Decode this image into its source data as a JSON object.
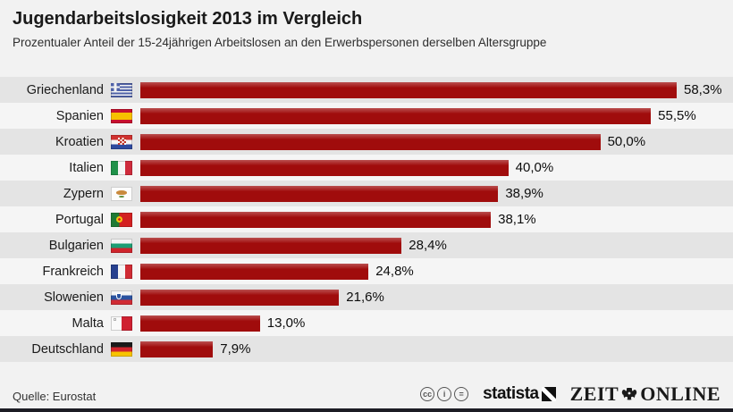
{
  "header": {
    "title": "Jugendarbeitslosigkeit 2013 im Vergleich",
    "subtitle": "Prozentualer Anteil der 15-24jährigen Arbeitslosen an den Erwerbspersonen derselben Altersgruppe"
  },
  "colors": {
    "bar": "#a00c0c",
    "row_odd": "#e4e4e4",
    "row_even": "#f5f5f5",
    "page_bg": "#f2f2f2",
    "bottom_strip": "#1c1c24"
  },
  "chart_data": {
    "type": "bar",
    "orientation": "horizontal",
    "title": "Jugendarbeitslosigkeit 2013 im Vergleich",
    "subtitle": "Prozentualer Anteil der 15-24jährigen Arbeitslosen an den Erwerbspersonen derselben Altersgruppe",
    "xlabel": "",
    "ylabel": "",
    "xlim": [
      0,
      60
    ],
    "grid": false,
    "legend": false,
    "source": "Eurostat",
    "categories": [
      "Griechenland",
      "Spanien",
      "Kroatien",
      "Italien",
      "Zypern",
      "Portugal",
      "Bulgarien",
      "Frankreich",
      "Slowenien",
      "Malta",
      "Deutschland"
    ],
    "values": [
      58.3,
      55.5,
      50.0,
      40.0,
      38.9,
      38.1,
      28.4,
      24.8,
      21.6,
      13.0,
      7.9
    ],
    "rows": [
      {
        "country": "Griechenland",
        "value": 58.3,
        "value_label": "58,3%",
        "flag_id": "greece",
        "flag": {
          "kind": "greece",
          "blue": "#4f61a8",
          "white": "#f2f2f2"
        }
      },
      {
        "country": "Spanien",
        "value": 55.5,
        "value_label": "55,5%",
        "flag_id": "spain",
        "flag": {
          "kind": "h",
          "stripes": [
            [
              "#c8102e",
              25
            ],
            [
              "#f7c000",
              50
            ],
            [
              "#c8102e",
              25
            ]
          ]
        }
      },
      {
        "country": "Kroatien",
        "value": 50.0,
        "value_label": "50,0%",
        "flag_id": "croatia",
        "flag": {
          "kind": "croatia",
          "stripes": [
            [
              "#d0312f",
              33.4
            ],
            [
              "#f5f5f5",
              33.3
            ],
            [
              "#2e4a9e",
              33.3
            ]
          ],
          "checker": [
            "#c0392b",
            "#ffffff"
          ]
        }
      },
      {
        "country": "Italien",
        "value": 40.0,
        "value_label": "40,0%",
        "flag_id": "italy",
        "flag": {
          "kind": "v",
          "stripes": [
            [
              "#1f9149",
              33.4
            ],
            [
              "#f5f5f5",
              33.3
            ],
            [
              "#cf2b3c",
              33.3
            ]
          ]
        }
      },
      {
        "country": "Zypern",
        "value": 38.9,
        "value_label": "38,9%",
        "flag_id": "cyprus",
        "flag": {
          "kind": "cyprus",
          "bg": "#fdfdfd",
          "island": "#c98a3d",
          "sprigs": "#5e8c3a"
        }
      },
      {
        "country": "Portugal",
        "value": 38.1,
        "value_label": "38,1%",
        "flag_id": "portugal",
        "flag": {
          "kind": "portugal",
          "stripes": [
            [
              "#1f7a34",
              40
            ],
            [
              "#d32021",
              60
            ]
          ],
          "emblem_outer": "#f4c20d",
          "emblem_inner": "#d32021"
        }
      },
      {
        "country": "Bulgarien",
        "value": 28.4,
        "value_label": "28,4%",
        "flag_id": "bulgaria",
        "flag": {
          "kind": "h",
          "stripes": [
            [
              "#f5f5f5",
              33.4
            ],
            [
              "#1d9e74",
              33.3
            ],
            [
              "#d0242c",
              33.3
            ]
          ]
        }
      },
      {
        "country": "Frankreich",
        "value": 24.8,
        "value_label": "24,8%",
        "flag_id": "france",
        "flag": {
          "kind": "v",
          "stripes": [
            [
              "#27408f",
              33.4
            ],
            [
              "#f5f5f5",
              33.3
            ],
            [
              "#d02b34",
              33.3
            ]
          ]
        }
      },
      {
        "country": "Slowenien",
        "value": 21.6,
        "value_label": "21,6%",
        "flag_id": "slovenia",
        "flag": {
          "kind": "slovenia",
          "stripes": [
            [
              "#f5f5f5",
              33.4
            ],
            [
              "#2a53a0",
              33.3
            ],
            [
              "#d02b34",
              33.3
            ]
          ],
          "crest": "#2a53a0"
        }
      },
      {
        "country": "Malta",
        "value": 13.0,
        "value_label": "13,0%",
        "flag_id": "malta",
        "flag": {
          "kind": "malta",
          "stripes": [
            [
              "#fafafa",
              50
            ],
            [
              "#cf2031",
              50
            ]
          ],
          "cross": "#b5b5b5"
        }
      },
      {
        "country": "Deutschland",
        "value": 7.9,
        "value_label": "7,9%",
        "flag_id": "germany",
        "flag": {
          "kind": "h",
          "stripes": [
            [
              "#1a1a1a",
              33.4
            ],
            [
              "#d0242c",
              33.3
            ],
            [
              "#f7c400",
              33.3
            ]
          ]
        }
      }
    ]
  },
  "footer": {
    "source": "Quelle: Eurostat",
    "cc_icons": [
      {
        "id": "cc",
        "glyph": "cc"
      },
      {
        "id": "by",
        "glyph": "i"
      },
      {
        "id": "nd",
        "glyph": "="
      }
    ],
    "statista_label": "statista",
    "zeit_left": "ZEIT",
    "zeit_right": "ONLINE"
  }
}
